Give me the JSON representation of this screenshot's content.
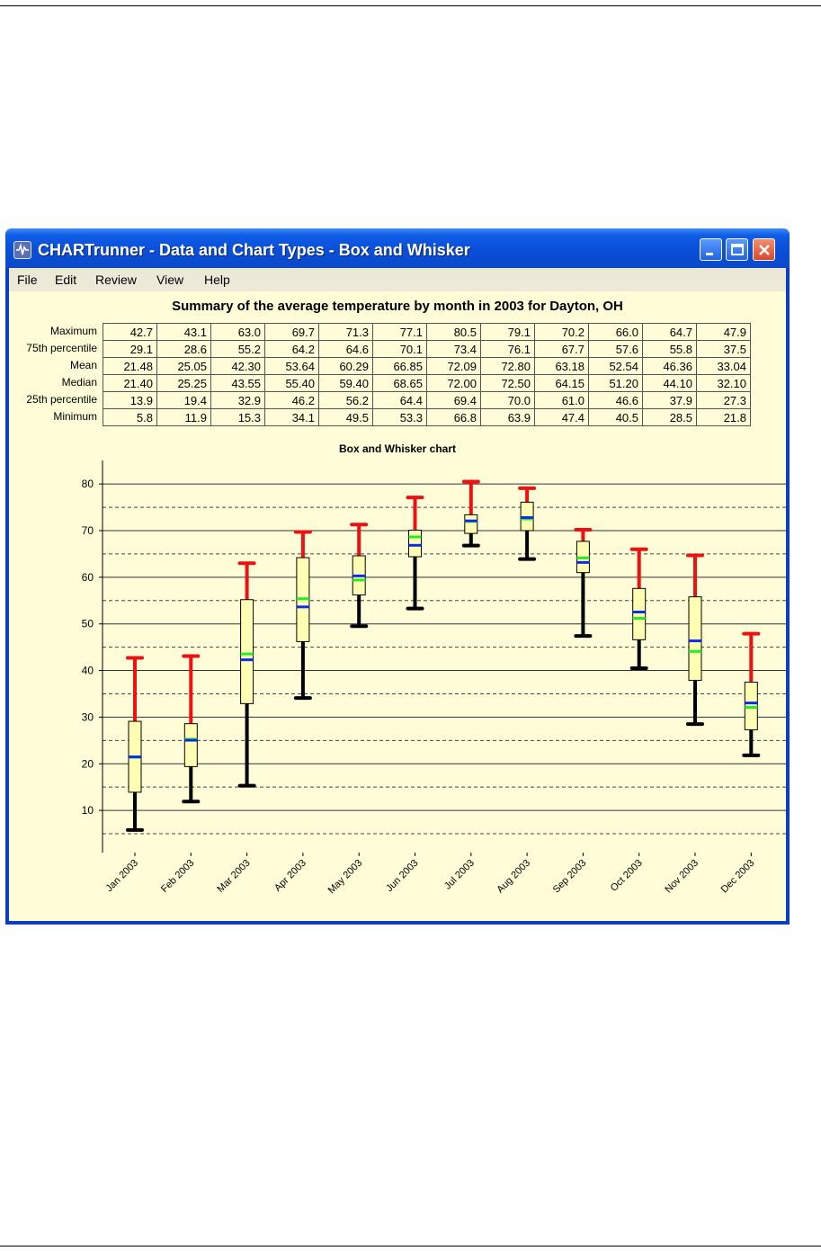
{
  "window": {
    "title": "CHARTrunner - Data and Chart Types - Box and Whisker",
    "icon": "chartrunner-app-icon",
    "controls": [
      "minimize-icon",
      "maximize-icon",
      "close-icon"
    ]
  },
  "menu": [
    "File",
    "Edit",
    "Review",
    "View",
    "Help"
  ],
  "summary": {
    "title": "Summary of the average temperature by month in 2003 for Dayton, OH",
    "rows": [
      {
        "label": "Maximum",
        "values": [
          "42.7",
          "43.1",
          "63.0",
          "69.7",
          "71.3",
          "77.1",
          "80.5",
          "79.1",
          "70.2",
          "66.0",
          "64.7",
          "47.9"
        ]
      },
      {
        "label": "75th percentile",
        "values": [
          "29.1",
          "28.6",
          "55.2",
          "64.2",
          "64.6",
          "70.1",
          "73.4",
          "76.1",
          "67.7",
          "57.6",
          "55.8",
          "37.5"
        ]
      },
      {
        "label": "Mean",
        "values": [
          "21.48",
          "25.05",
          "42.30",
          "53.64",
          "60.29",
          "66.85",
          "72.09",
          "72.80",
          "63.18",
          "52.54",
          "46.36",
          "33.04"
        ]
      },
      {
        "label": "Median",
        "values": [
          "21.40",
          "25.25",
          "43.55",
          "55.40",
          "59.40",
          "68.65",
          "72.00",
          "72.50",
          "64.15",
          "51.20",
          "44.10",
          "32.10"
        ]
      },
      {
        "label": "25th percentile",
        "values": [
          "13.9",
          "19.4",
          "32.9",
          "46.2",
          "56.2",
          "64.4",
          "69.4",
          "70.0",
          "61.0",
          "46.6",
          "37.9",
          "27.3"
        ]
      },
      {
        "label": "Minimum",
        "values": [
          "5.8",
          "11.9",
          "15.3",
          "34.1",
          "49.5",
          "53.3",
          "66.8",
          "63.9",
          "47.4",
          "40.5",
          "28.5",
          "21.8"
        ]
      }
    ]
  },
  "chart_data": {
    "type": "box",
    "title": "Box and Whisker chart",
    "categories": [
      "Jan 2003",
      "Feb 2003",
      "Mar 2003",
      "Apr 2003",
      "May 2003",
      "Jun 2003",
      "Jul 2003",
      "Aug 2003",
      "Sep 2003",
      "Oct 2003",
      "Nov 2003",
      "Dec 2003"
    ],
    "max": [
      42.7,
      43.1,
      63.0,
      69.7,
      71.3,
      77.1,
      80.5,
      79.1,
      70.2,
      66.0,
      64.7,
      47.9
    ],
    "q3": [
      29.1,
      28.6,
      55.2,
      64.2,
      64.6,
      70.1,
      73.4,
      76.1,
      67.7,
      57.6,
      55.8,
      37.5
    ],
    "mean": [
      21.48,
      25.05,
      42.3,
      53.64,
      60.29,
      66.85,
      72.09,
      72.8,
      63.18,
      52.54,
      46.36,
      33.04
    ],
    "median": [
      21.4,
      25.25,
      43.55,
      55.4,
      59.4,
      68.65,
      72.0,
      72.5,
      64.15,
      51.2,
      44.1,
      32.1
    ],
    "q1": [
      13.9,
      19.4,
      32.9,
      46.2,
      56.2,
      64.4,
      69.4,
      70.0,
      61.0,
      46.6,
      37.9,
      27.3
    ],
    "min": [
      5.8,
      11.9,
      15.3,
      34.1,
      49.5,
      53.3,
      66.8,
      63.9,
      47.4,
      40.5,
      28.5,
      21.8
    ],
    "yticks": [
      10,
      20,
      30,
      40,
      50,
      60,
      70,
      80
    ],
    "ylim": [
      2.5,
      83.5
    ],
    "grid": {
      "solid_every": 10,
      "dashed_every": 5
    },
    "colors": {
      "upper_whisker": "#ee1111",
      "lower_whisker": "#000000",
      "box_fill": "#ffffb4",
      "mean_line": "#0b2ce8",
      "median_line": "#22ee22",
      "background": "#fffdd8"
    }
  }
}
